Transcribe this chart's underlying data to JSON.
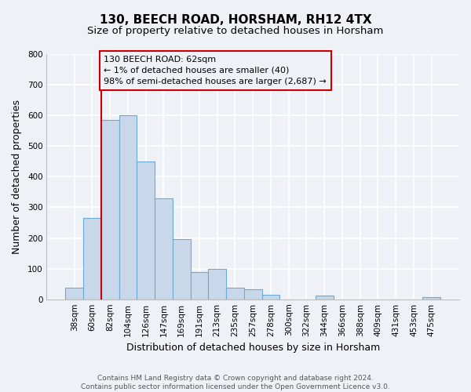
{
  "title": "130, BEECH ROAD, HORSHAM, RH12 4TX",
  "subtitle": "Size of property relative to detached houses in Horsham",
  "xlabel": "Distribution of detached houses by size in Horsham",
  "ylabel": "Number of detached properties",
  "bar_labels": [
    "38sqm",
    "60sqm",
    "82sqm",
    "104sqm",
    "126sqm",
    "147sqm",
    "169sqm",
    "191sqm",
    "213sqm",
    "235sqm",
    "257sqm",
    "278sqm",
    "300sqm",
    "322sqm",
    "344sqm",
    "366sqm",
    "388sqm",
    "409sqm",
    "431sqm",
    "453sqm",
    "475sqm"
  ],
  "bar_heights": [
    38,
    265,
    585,
    600,
    450,
    330,
    197,
    90,
    100,
    37,
    32,
    15,
    0,
    0,
    12,
    0,
    0,
    0,
    0,
    0,
    8
  ],
  "bar_color": "#c8d8ea",
  "bar_edge_color": "#6aaad4",
  "marker_label_line1": "130 BEECH ROAD: 62sqm",
  "marker_label_line2": "← 1% of detached houses are smaller (40)",
  "marker_label_line3": "98% of semi-detached houses are larger (2,687) →",
  "marker_line_color": "#cc0000",
  "annotation_box_edge_color": "#cc0000",
  "ylim": [
    0,
    800
  ],
  "yticks": [
    0,
    100,
    200,
    300,
    400,
    500,
    600,
    700,
    800
  ],
  "footer_line1": "Contains HM Land Registry data © Crown copyright and database right 2024.",
  "footer_line2": "Contains public sector information licensed under the Open Government Licence v3.0.",
  "bg_color": "#eef2f7",
  "grid_color": "#ffffff",
  "title_fontsize": 11,
  "subtitle_fontsize": 9.5,
  "axis_label_fontsize": 9,
  "tick_fontsize": 7.5,
  "footer_fontsize": 6.5,
  "annotation_fontsize": 8
}
